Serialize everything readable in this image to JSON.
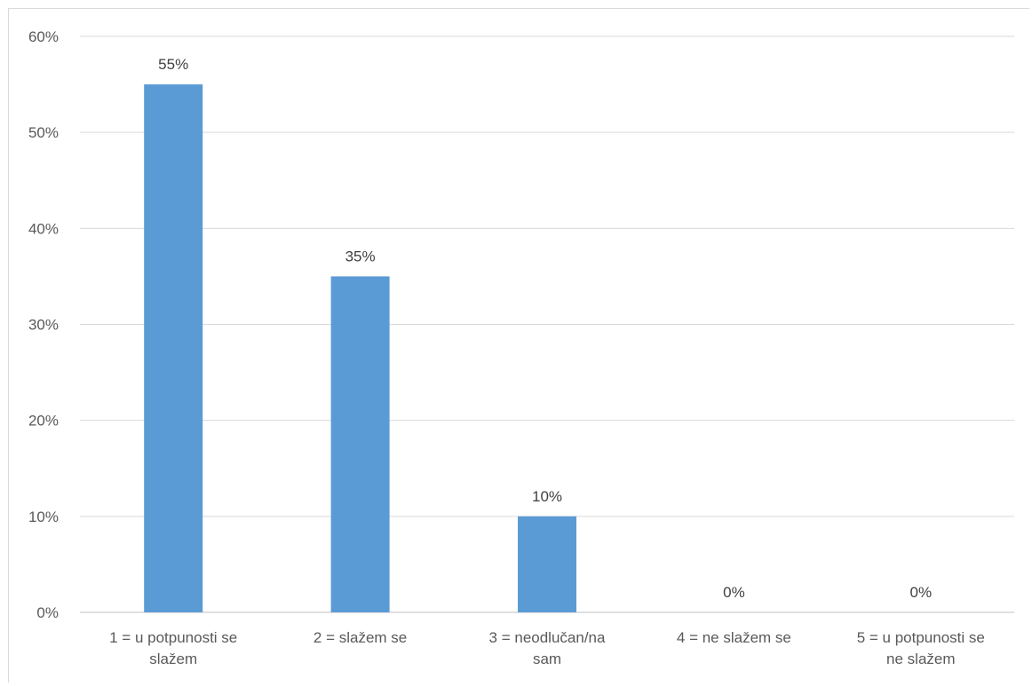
{
  "chart_data": {
    "type": "bar",
    "categories": [
      [
        "1 = u potpunosti se",
        "slažem"
      ],
      [
        "2 = slažem se"
      ],
      [
        "3 = neodlučan/na",
        "sam"
      ],
      [
        "4 = ne slažem se"
      ],
      [
        "5 = u potpunosti se",
        "ne slažem"
      ]
    ],
    "values": [
      55,
      35,
      10,
      0,
      0
    ],
    "data_labels": [
      "55%",
      "35%",
      "10%",
      "0%",
      "0%"
    ],
    "y_ticks": [
      "0%",
      "10%",
      "20%",
      "30%",
      "40%",
      "50%",
      "60%"
    ],
    "ylim": [
      0,
      60
    ],
    "grid": true,
    "bar_color": "#5b9bd5"
  }
}
